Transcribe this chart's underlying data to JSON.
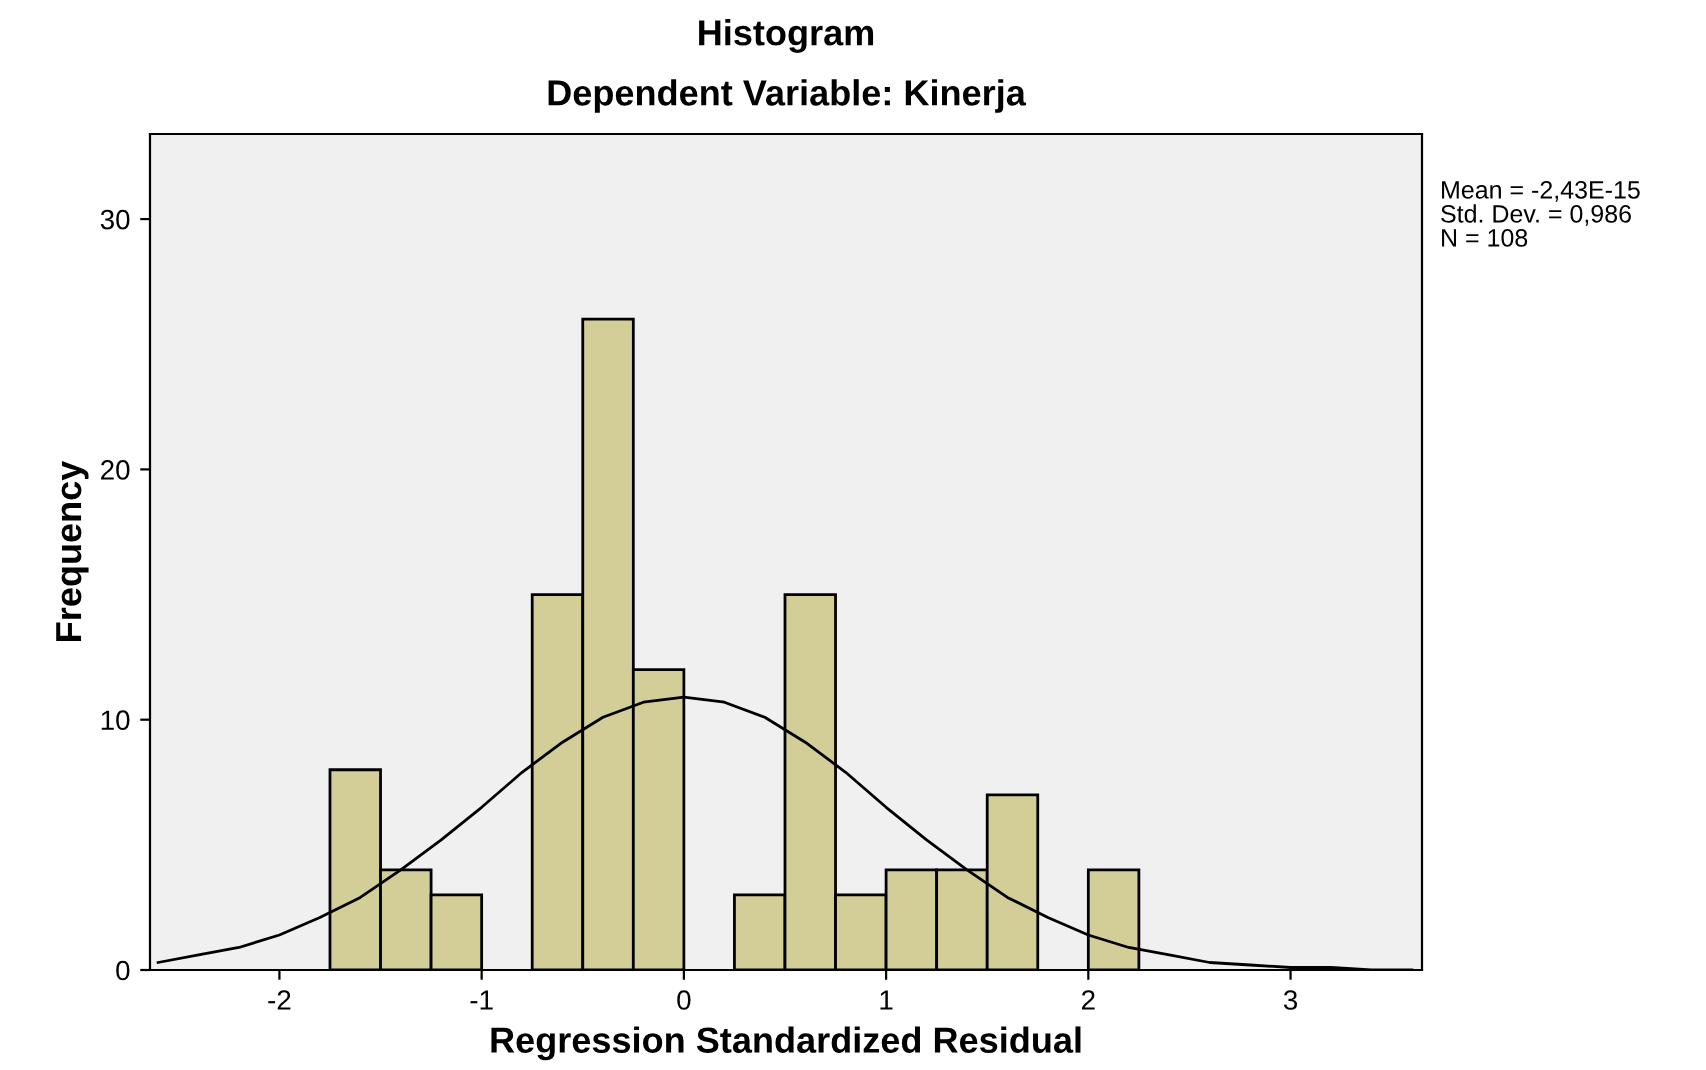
{
  "chart_data": {
    "type": "histogram",
    "title": "Histogram",
    "subtitle": "Dependent Variable: Kinerja",
    "xlabel": "Regression Standardized Residual",
    "ylabel": "Frequency",
    "bins": [
      -1.75,
      -1.5,
      -1.25,
      -1.0,
      -0.75,
      -0.5,
      -0.25,
      0.0,
      0.25,
      0.5,
      0.75,
      1.0,
      1.25,
      1.5,
      1.75,
      2.0,
      2.25
    ],
    "values": [
      8,
      4,
      3,
      0,
      15,
      26,
      12,
      0,
      3,
      15,
      3,
      4,
      4,
      7,
      0,
      4
    ],
    "color": "#d3ce97",
    "series": [
      {
        "type": "line",
        "color": "#000000",
        "x": [
          -2.6,
          -2.4,
          -2.2,
          -2.0,
          -1.8,
          -1.6,
          -1.4,
          -1.2,
          -1.0,
          -0.8,
          -0.6,
          -0.4,
          -0.2,
          0.0,
          0.2,
          0.4,
          0.6,
          0.8,
          1.0,
          1.2,
          1.4,
          1.6,
          1.8,
          2.0,
          2.2,
          2.4,
          2.6,
          2.8,
          3.0,
          3.2,
          3.4,
          3.6
        ],
        "values": [
          0.3,
          0.6,
          0.9,
          1.4,
          2.1,
          2.9,
          4.0,
          5.2,
          6.5,
          7.9,
          9.1,
          10.1,
          10.7,
          10.9,
          10.7,
          10.1,
          9.1,
          7.9,
          6.5,
          5.2,
          4.0,
          2.9,
          2.1,
          1.4,
          0.9,
          0.6,
          0.3,
          0.2,
          0.1,
          0.1,
          0.0,
          0.0
        ]
      }
    ],
    "xlim": [
      -2.64,
      3.65
    ],
    "ylim": [
      0,
      33.4
    ],
    "xticks": [
      -2,
      -1,
      0,
      1,
      2,
      3
    ],
    "yticks": [
      0,
      10,
      20,
      30
    ],
    "annotations": [
      "Mean = -2,43E-15",
      "Std. Dev. = 0,986",
      "N = 108"
    ],
    "grid": false,
    "legend": false
  }
}
